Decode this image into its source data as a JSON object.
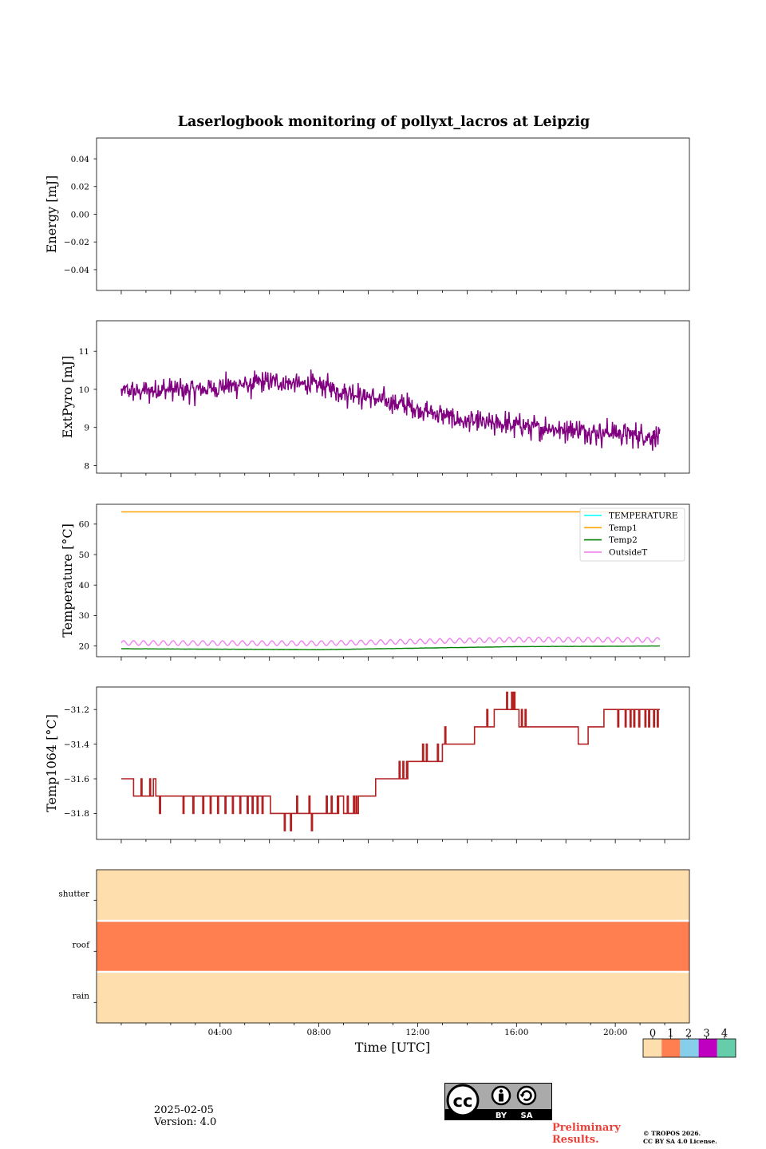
{
  "chart_data": {
    "title": "Laserlogbook monitoring of pollyxt_lacros at Leipzig",
    "x_label": "Time [UTC]",
    "x_range_hours": [
      -1.0,
      23.0
    ],
    "x_ticks": [
      {
        "hour": 4,
        "label": "04:00"
      },
      {
        "hour": 8,
        "label": "08:00"
      },
      {
        "hour": 12,
        "label": "12:00"
      },
      {
        "hour": 16,
        "label": "16:00"
      },
      {
        "hour": 20,
        "label": "20:00"
      }
    ],
    "panels": [
      {
        "id": "energy",
        "type": "line",
        "ylabel": "Energy [mJ]",
        "ylim": [
          -0.055,
          0.055
        ],
        "yticks": [
          {
            "v": 0.04,
            "label": "0.04"
          },
          {
            "v": 0.02,
            "label": "0.02"
          },
          {
            "v": 0.0,
            "label": "0.00"
          },
          {
            "v": -0.02,
            "label": "−0.02"
          },
          {
            "v": -0.04,
            "label": "−0.04"
          }
        ],
        "series": []
      },
      {
        "id": "extpyro",
        "type": "line",
        "ylabel": "ExtPyro [mJ]",
        "ylim": [
          7.8,
          11.8
        ],
        "yticks": [
          {
            "v": 8,
            "label": "8"
          },
          {
            "v": 9,
            "label": "9"
          },
          {
            "v": 10,
            "label": "10"
          },
          {
            "v": 11,
            "label": "11"
          }
        ],
        "series": [
          {
            "name": "ExtPyro",
            "color": "#800080",
            "x_start": 0.0,
            "x_end": 21.8,
            "points": 900,
            "trend": [
              [
                0,
                9.95
              ],
              [
                3,
                10.0
              ],
              [
                6,
                10.2
              ],
              [
                8,
                10.1
              ],
              [
                10,
                9.8
              ],
              [
                12,
                9.5
              ],
              [
                14,
                9.15
              ],
              [
                16,
                9.05
              ],
              [
                18,
                8.95
              ],
              [
                20,
                8.85
              ],
              [
                21.8,
                8.75
              ]
            ],
            "noise_amp": 0.45
          }
        ]
      },
      {
        "id": "temperature",
        "type": "line",
        "ylabel": "Temperature [°C]",
        "ylim": [
          16.5,
          66.5
        ],
        "yticks": [
          {
            "v": 20,
            "label": "20"
          },
          {
            "v": 30,
            "label": "30"
          },
          {
            "v": 40,
            "label": "40"
          },
          {
            "v": 50,
            "label": "50"
          },
          {
            "v": 60,
            "label": "60"
          }
        ],
        "legend": "upper right",
        "series": [
          {
            "name": "TEMPERATURE",
            "color": "#00ffff",
            "x_start": 0.0,
            "x_end": 21.8,
            "trend": [],
            "noise_amp": 0
          },
          {
            "name": "Temp1",
            "color": "#ffa500",
            "x_start": 0.0,
            "x_end": 21.8,
            "trend": [
              [
                0,
                64.0
              ],
              [
                21.8,
                64.0
              ]
            ],
            "noise_amp": 0
          },
          {
            "name": "Temp2",
            "color": "#008000",
            "x_start": 0.0,
            "x_end": 21.8,
            "trend": [
              [
                0,
                19.1
              ],
              [
                6,
                18.9
              ],
              [
                8,
                18.8
              ],
              [
                12,
                19.3
              ],
              [
                16,
                19.8
              ],
              [
                21.8,
                20.0
              ]
            ],
            "noise_amp": 0.05
          },
          {
            "name": "OutsideT",
            "color": "#ee82ee",
            "x_start": 0.0,
            "x_end": 21.8,
            "trend": [
              [
                0,
                21.0
              ],
              [
                8,
                20.9
              ],
              [
                12,
                21.5
              ],
              [
                16,
                22.1
              ],
              [
                21.8,
                22.0
              ]
            ],
            "osc_amp": 0.8,
            "osc_period": 0.4
          }
        ]
      },
      {
        "id": "temp1064",
        "type": "step",
        "ylabel": "Temp1064 [°C]",
        "ylim": [
          -31.95,
          -31.07
        ],
        "yticks": [
          {
            "v": -31.2,
            "label": "−31.2"
          },
          {
            "v": -31.4,
            "label": "−31.4"
          },
          {
            "v": -31.6,
            "label": "−31.6"
          },
          {
            "v": -31.8,
            "label": "−31.8"
          }
        ],
        "series": [
          {
            "name": "Temp1064",
            "color": "#b22222",
            "steps": [
              [
                0.0,
                -31.6
              ],
              [
                0.45,
                -31.6
              ],
              [
                0.5,
                -31.7
              ],
              [
                1.3,
                -31.6
              ],
              [
                1.4,
                -31.7
              ],
              [
                2.8,
                -31.7
              ],
              [
                3.2,
                -31.7
              ],
              [
                5.5,
                -31.7
              ],
              [
                6.0,
                -31.8
              ],
              [
                7.0,
                -31.8
              ],
              [
                8.6,
                -31.8
              ],
              [
                8.8,
                -31.7
              ],
              [
                9.0,
                -31.8
              ],
              [
                9.6,
                -31.7
              ],
              [
                10.1,
                -31.7
              ],
              [
                10.3,
                -31.6
              ],
              [
                11.0,
                -31.6
              ],
              [
                11.6,
                -31.5
              ],
              [
                12.8,
                -31.5
              ],
              [
                13.0,
                -31.4
              ],
              [
                14.0,
                -31.4
              ],
              [
                14.3,
                -31.3
              ],
              [
                14.9,
                -31.3
              ],
              [
                15.1,
                -31.2
              ],
              [
                15.8,
                -31.1
              ],
              [
                15.85,
                -31.2
              ],
              [
                16.1,
                -31.3
              ],
              [
                17.3,
                -31.3
              ],
              [
                17.5,
                -31.3
              ],
              [
                18.5,
                -31.4
              ],
              [
                18.9,
                -31.3
              ],
              [
                19.4,
                -31.3
              ],
              [
                19.5,
                -31.2
              ],
              [
                21.8,
                -31.2
              ]
            ],
            "spikes": [
              [
                0.6,
                -31.7
              ],
              [
                0.8,
                -31.6
              ],
              [
                1.0,
                -31.7
              ],
              [
                1.15,
                -31.6
              ],
              [
                1.55,
                -31.8
              ],
              [
                2.5,
                -31.8
              ],
              [
                2.9,
                -31.8
              ],
              [
                3.3,
                -31.8
              ],
              [
                3.6,
                -31.8
              ],
              [
                3.9,
                -31.8
              ],
              [
                4.2,
                -31.8
              ],
              [
                4.5,
                -31.8
              ],
              [
                4.8,
                -31.8
              ],
              [
                5.1,
                -31.8
              ],
              [
                5.3,
                -31.8
              ],
              [
                5.5,
                -31.8
              ],
              [
                5.7,
                -31.8
              ],
              [
                6.0,
                -31.7
              ],
              [
                6.3,
                -31.8
              ],
              [
                6.6,
                -31.9
              ],
              [
                6.85,
                -31.9
              ],
              [
                7.1,
                -31.7
              ],
              [
                7.6,
                -31.7
              ],
              [
                7.7,
                -31.9
              ],
              [
                8.3,
                -31.7
              ],
              [
                8.5,
                -31.7
              ],
              [
                8.75,
                -31.7
              ],
              [
                9.15,
                -31.7
              ],
              [
                9.4,
                -31.7
              ],
              [
                9.5,
                -31.7
              ],
              [
                11.25,
                -31.5
              ],
              [
                11.4,
                -31.5
              ],
              [
                11.55,
                -31.5
              ],
              [
                12.2,
                -31.4
              ],
              [
                12.35,
                -31.4
              ],
              [
                12.8,
                -31.4
              ],
              [
                13.1,
                -31.3
              ],
              [
                14.2,
                -31.4
              ],
              [
                14.4,
                -31.3
              ],
              [
                14.8,
                -31.2
              ],
              [
                15.6,
                -31.1
              ],
              [
                15.9,
                -31.1
              ],
              [
                16.05,
                -31.2
              ],
              [
                16.2,
                -31.2
              ],
              [
                16.35,
                -31.2
              ],
              [
                19.5,
                -31.3
              ],
              [
                20.1,
                -31.3
              ],
              [
                20.4,
                -31.3
              ],
              [
                20.6,
                -31.3
              ],
              [
                20.75,
                -31.3
              ],
              [
                20.95,
                -31.3
              ],
              [
                21.2,
                -31.3
              ],
              [
                21.35,
                -31.3
              ],
              [
                21.55,
                -31.3
              ],
              [
                21.7,
                -31.3
              ]
            ]
          }
        ]
      },
      {
        "id": "status",
        "type": "heatmap",
        "rows": [
          {
            "label": "shutter",
            "value": 0
          },
          {
            "label": "roof",
            "value": 1
          },
          {
            "label": "rain",
            "value": 0
          }
        ]
      }
    ],
    "colorbar": {
      "ticks": [
        "0",
        "1",
        "2",
        "3",
        "4"
      ],
      "colors": [
        "#ffdead",
        "#ff7f50",
        "#87ceeb",
        "#c000c0",
        "#66cdaa"
      ]
    }
  },
  "footer": {
    "date": "2025-02-05",
    "version": "Version: 4.0",
    "preliminary_line1": "Preliminary",
    "preliminary_line2": "Results.",
    "copyright_line1": "© TROPOS 2026.",
    "copyright_line2": "CC BY SA 4.0 License.",
    "license_badge": {
      "main": "cc",
      "left": "BY",
      "right": "SA"
    }
  }
}
